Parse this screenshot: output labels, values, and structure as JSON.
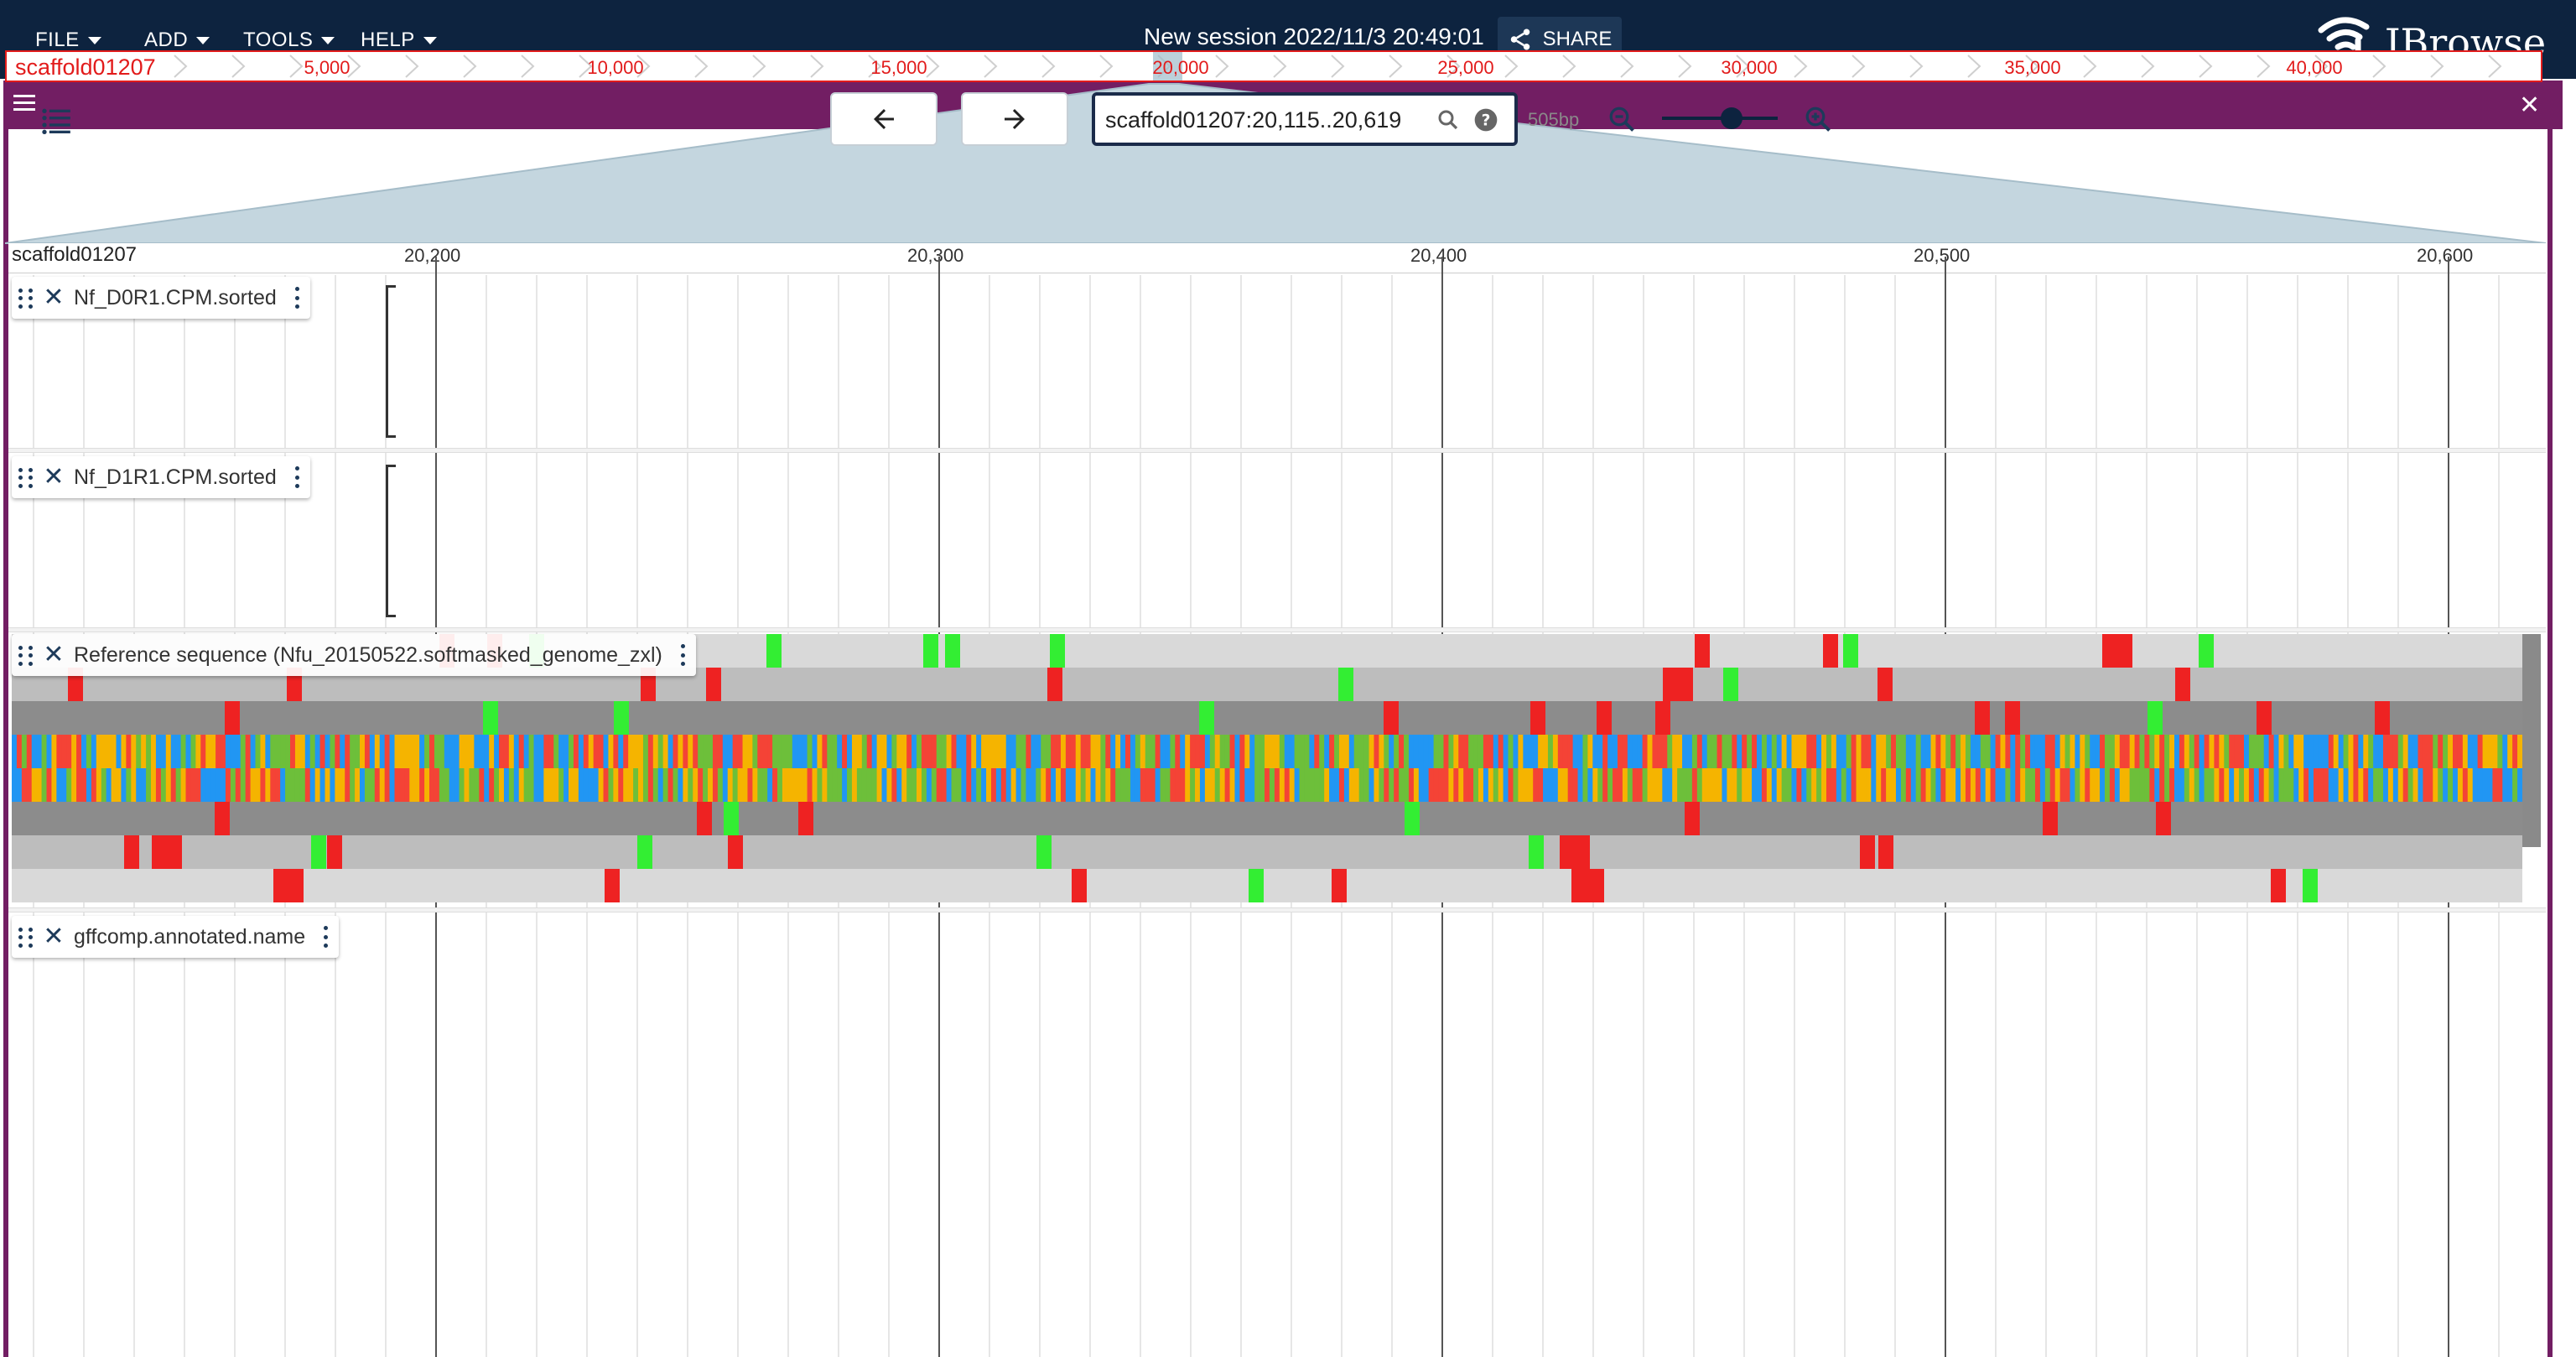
{
  "menu": {
    "file": "FILE",
    "add": "ADD",
    "tools": "TOOLS",
    "help": "HELP"
  },
  "session": {
    "title": "New session 2022/11/3 20:49:01",
    "share_label": "SHARE"
  },
  "logo": {
    "text": "JBrowse"
  },
  "view": {
    "title": "Nfu_20150522.softmasked_genome_zxl",
    "overview": {
      "ref_name": "scaffold01207",
      "ticks": [
        "5,000",
        "10,000",
        "15,000",
        "20,000",
        "25,000",
        "30,000",
        "35,000",
        "40,000"
      ]
    },
    "location": {
      "value": "scaffold01207:20,115..20,619",
      "bp": "505bp"
    },
    "ruler": {
      "ref_name": "scaffold01207",
      "ticks": [
        "20,200",
        "20,300",
        "20,400",
        "20,500",
        "20,600"
      ]
    }
  },
  "tracks": [
    {
      "name": "Nf_D0R1.CPM.sorted"
    },
    {
      "name": "Nf_D1R1.CPM.sorted"
    },
    {
      "name": "Reference sequence (Nfu_20150522.softmasked_genome_zxl)"
    },
    {
      "name": "gffcomp.annotated.name"
    }
  ],
  "colors": {
    "appbar": "#0d233f",
    "view_header": "#721e63",
    "overview_accent": "#e21b1b",
    "base_a": "#6dbf3a",
    "base_c": "#2196f3",
    "base_g": "#f5b400",
    "base_t": "#f44336",
    "stop_codon": "#ee2222",
    "start_codon": "#33ee33"
  },
  "icons": {
    "share": "share-icon",
    "menu": "hamburger-icon",
    "close": "close-icon",
    "track_selector": "track-list-icon",
    "back": "arrow-left-icon",
    "forward": "arrow-right-icon",
    "search": "search-icon",
    "help": "help-circle-icon",
    "zoom_out": "zoom-out-icon",
    "zoom_in": "zoom-in-icon"
  }
}
